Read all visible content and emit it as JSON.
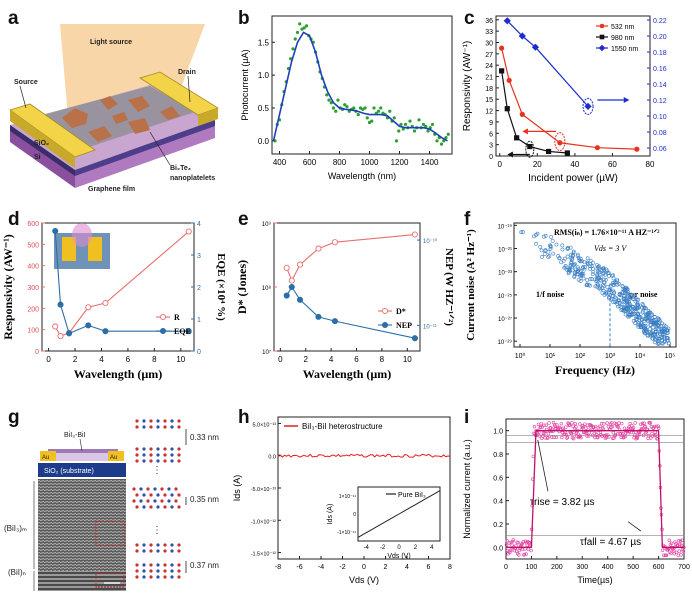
{
  "panels": {
    "a": {
      "label": "a",
      "light_source": "Light source",
      "source": "Source",
      "drain": "Drain",
      "sio2": "SiO₂",
      "si": "Si",
      "graphene": "Graphene film",
      "bi2te3_line1": "Bi₂Te₃",
      "bi2te3_line2": "nanoplatelets"
    },
    "b": {
      "label": "b"
    },
    "c": {
      "label": "c"
    },
    "d": {
      "label": "d"
    },
    "e": {
      "label": "e"
    },
    "f": {
      "label": "f",
      "rms": "RMS(iₙ) = 1.76×10⁻¹¹ A HZ⁻¹ᐟ²",
      "vds": "Vds = 3 V",
      "one_over_f": "1/f noise",
      "gr": "g-r noise"
    },
    "g": {
      "label": "g",
      "bi3bil": "BiI₃-BiI",
      "au_left": "Au",
      "au_right": "Au",
      "sio2": "SiO₂ (substrate)",
      "bii3_n": "(BiI₃)ₘ",
      "bii_n": "(BiI)ₙ",
      "d1": "0.33 nm",
      "d2": "0.35 nm",
      "d3": "0.37 nm",
      "dots": "⋮"
    },
    "h": {
      "label": "h"
    },
    "i": {
      "label": "i",
      "trise": "τrise = 3.82 µs",
      "tfall": "τfall = 4.67 µs"
    }
  },
  "chart_data": [
    {
      "id": "b",
      "type": "scatter",
      "title": "",
      "xlabel": "Wavelength (nm)",
      "ylabel": "Photocurrent (µA)",
      "xlim": [
        350,
        1550
      ],
      "ylim": [
        -0.2,
        1.9
      ],
      "xticks": [
        400,
        600,
        800,
        1000,
        1200,
        1400
      ],
      "yticks": [
        0.0,
        0.5,
        1.0,
        1.5
      ],
      "series": [
        {
          "name": "data",
          "color": "#2ca02c",
          "x": [
            370,
            385,
            400,
            415,
            430,
            445,
            460,
            475,
            490,
            505,
            520,
            535,
            550,
            565,
            580,
            595,
            610,
            625,
            640,
            655,
            670,
            685,
            700,
            715,
            730,
            745,
            760,
            775,
            790,
            805,
            820,
            835,
            850,
            865,
            880,
            895,
            910,
            925,
            940,
            955,
            970,
            985,
            1000,
            1015,
            1030,
            1045,
            1060,
            1075,
            1090,
            1105,
            1120,
            1135,
            1150,
            1165,
            1180,
            1195,
            1210,
            1225,
            1240,
            1255,
            1270,
            1285,
            1300,
            1315,
            1330,
            1345,
            1360,
            1375,
            1390,
            1405,
            1420,
            1435,
            1450,
            1465,
            1480,
            1495,
            1510,
            1525
          ],
          "y": [
            0.0,
            0.25,
            0.32,
            0.55,
            0.75,
            0.9,
            1.1,
            1.25,
            1.4,
            1.55,
            1.65,
            1.78,
            1.7,
            1.72,
            1.75,
            1.6,
            1.55,
            1.5,
            1.35,
            1.2,
            1.05,
            0.95,
            0.82,
            0.7,
            0.62,
            0.58,
            0.5,
            0.45,
            0.62,
            0.5,
            0.48,
            0.55,
            0.52,
            0.45,
            0.48,
            0.5,
            0.45,
            0.4,
            0.5,
            0.48,
            0.5,
            0.35,
            0.28,
            0.3,
            0.5,
            0.42,
            0.45,
            0.5,
            0.42,
            0.4,
            0.35,
            0.45,
            0.3,
            0.35,
            0.0,
            0.15,
            0.25,
            0.18,
            0.25,
            0.2,
            0.3,
            0.22,
            0.15,
            0.2,
            0.32,
            0.2,
            0.25,
            0.22,
            0.15,
            0.2,
            0.25,
            0.1,
            0.0,
            0.05,
            -0.05,
            0.0,
            0.05,
            0.1
          ]
        },
        {
          "name": "fit",
          "color": "#1f3fbf",
          "x": [
            360,
            420,
            480,
            520,
            560,
            600,
            640,
            680,
            720,
            760,
            800,
            840,
            880,
            920,
            960,
            1000,
            1040,
            1080,
            1120,
            1160,
            1200,
            1240,
            1280,
            1320,
            1360,
            1400,
            1440,
            1480,
            1520
          ],
          "y": [
            0.0,
            0.6,
            1.2,
            1.5,
            1.65,
            1.6,
            1.35,
            1.0,
            0.75,
            0.58,
            0.5,
            0.48,
            0.47,
            0.45,
            0.42,
            0.4,
            0.4,
            0.4,
            0.38,
            0.3,
            0.22,
            0.2,
            0.2,
            0.2,
            0.2,
            0.18,
            0.12,
            0.05,
            0.0
          ]
        }
      ]
    },
    {
      "id": "c",
      "type": "line",
      "xlabel": "Incident power (µW)",
      "ylabel": "Responsivity (AW⁻¹)",
      "xlim": [
        -2,
        80
      ],
      "ylim": [
        0,
        37
      ],
      "y2lim": [
        0.05,
        0.225
      ],
      "xticks": [
        0,
        20,
        40,
        60,
        80
      ],
      "yticks": [
        0,
        3,
        6,
        9,
        12,
        15,
        18,
        21,
        24,
        27,
        30,
        33,
        36
      ],
      "y2ticks": [
        0.06,
        0.08,
        0.1,
        0.12,
        0.14,
        0.16,
        0.18,
        0.2,
        0.22
      ],
      "series": [
        {
          "name": "532 nm",
          "color": "#e8321e",
          "axis": "left",
          "x": [
            1,
            5,
            12,
            32,
            52,
            73
          ],
          "y": [
            28.5,
            20,
            11,
            3.5,
            2.2,
            1.8
          ]
        },
        {
          "name": "980 nm",
          "color": "#111111",
          "axis": "left",
          "x": [
            1,
            4,
            9,
            16,
            26,
            36
          ],
          "y": [
            22.5,
            12.5,
            4.8,
            2.5,
            1.2,
            0.8
          ]
        },
        {
          "name": "1550 nm",
          "color": "#1a2ccf",
          "axis": "right",
          "x": [
            4,
            12,
            19,
            47
          ],
          "y": [
            0.219,
            0.2,
            0.186,
            0.112
          ]
        }
      ]
    },
    {
      "id": "d",
      "type": "line",
      "xlabel": "Wavelength (µm)",
      "ylabel": "Responsivity (AW⁻¹)",
      "y2label": "EQE (×10⁴ %)",
      "xlim": [
        -0.5,
        11
      ],
      "ylim": [
        0,
        600
      ],
      "y2lim": [
        0,
        4
      ],
      "xticks": [
        0,
        2,
        4,
        6,
        8,
        10
      ],
      "yticks": [
        0,
        100,
        200,
        300,
        400,
        500,
        600
      ],
      "y2ticks": [
        0,
        1,
        2,
        3,
        4
      ],
      "series": [
        {
          "name": "R",
          "color": "#e87070",
          "axis": "left",
          "x": [
            0.5,
            0.9,
            1.55,
            3.0,
            4.3,
            10.6
          ],
          "y": [
            115,
            70,
            85,
            205,
            225,
            560
          ]
        },
        {
          "name": "EQE",
          "color": "#2b6ea8",
          "axis": "right",
          "x": [
            0.5,
            0.9,
            1.55,
            3.0,
            4.3,
            10.6
          ],
          "y": [
            3.75,
            1.45,
            0.55,
            0.8,
            0.62,
            0.62
          ]
        }
      ]
    },
    {
      "id": "e",
      "type": "line",
      "xlabel": "Wavelength (µm)",
      "ylabel": "D* (Jones)",
      "y2label": "NEP (W HZ⁻¹ᐟ²)",
      "xlim": [
        -0.5,
        11
      ],
      "xticks": [
        0,
        2,
        4,
        6,
        8,
        10
      ],
      "yticks_labels": [
        "10⁷",
        "10⁸",
        "10⁹"
      ],
      "y2ticks_labels": [
        "10⁻¹⁰",
        "10⁻¹¹"
      ],
      "series": [
        {
          "name": "D*",
          "color": "#e87070",
          "axis": "left",
          "x": [
            0.5,
            0.9,
            1.55,
            3.0,
            4.3,
            10.6
          ],
          "y_log": [
            8.3,
            8.1,
            8.35,
            8.6,
            8.7,
            8.82
          ]
        },
        {
          "name": "NEP",
          "color": "#2b6ea8",
          "axis": "right",
          "x": [
            0.5,
            0.9,
            1.55,
            3.0,
            4.3,
            10.6
          ],
          "y_log": [
            -11.05,
            -10.95,
            -11.1,
            -11.3,
            -11.35,
            -11.55
          ]
        }
      ]
    },
    {
      "id": "f",
      "type": "scatter",
      "xlabel": "Frequency (Hz)",
      "ylabel": "Current noise (A² Hz⁻¹)",
      "xscale": "log",
      "yscale": "log",
      "xticks_labels": [
        "10⁰",
        "10¹",
        "10²",
        "10³",
        "10⁴",
        "10⁵"
      ],
      "yticks_labels": [
        "10⁻¹⁹",
        "10⁻²¹",
        "10⁻²³",
        "10⁻²⁵",
        "10⁻²⁷",
        "10⁻²⁹"
      ],
      "note": "dense scatter of points decreasing from ~10⁻¹⁹ at 1 Hz to ~10⁻²⁸ at 10⁵ Hz"
    },
    {
      "id": "h",
      "type": "line",
      "xlabel": "Vds (V)",
      "ylabel": "Ids (A)",
      "xlim": [
        -8,
        8
      ],
      "ylim": [
        -1.5e-12,
        5e-13
      ],
      "xticks": [
        -8,
        -6,
        -4,
        -2,
        0,
        2,
        4,
        6,
        8
      ],
      "yticks_labels": [
        "5.0×10⁻¹³",
        "0.0",
        "-5.0×10⁻¹³",
        "-1.0×10⁻¹²",
        "-1.5×10⁻¹²"
      ],
      "legend": "BiI₃-BiI heterostructure",
      "inset": {
        "title": "Pure BiI₃",
        "xlabel": "Vds (V)",
        "ylabel": "Ids (A)",
        "xticks": [
          -4,
          -2,
          0,
          2,
          4
        ],
        "yticks_labels": [
          "1×10⁻¹¹",
          "0",
          "-1×10⁻¹¹"
        ]
      }
    },
    {
      "id": "i",
      "type": "line",
      "xlabel": "Time(µs)",
      "ylabel": "Normalized current (a.u.)",
      "xlim": [
        0,
        700
      ],
      "ylim": [
        -0.1,
        1.1
      ],
      "xticks": [
        0,
        100,
        200,
        300,
        400,
        500,
        600,
        700
      ],
      "yticks": [
        0.0,
        0.2,
        0.4,
        0.6,
        0.8,
        1.0
      ],
      "fit": {
        "x": [
          0,
          100,
          118,
          590,
          600,
          615,
          700
        ],
        "y": [
          0,
          0,
          1,
          1,
          1,
          0,
          0
        ]
      }
    }
  ]
}
